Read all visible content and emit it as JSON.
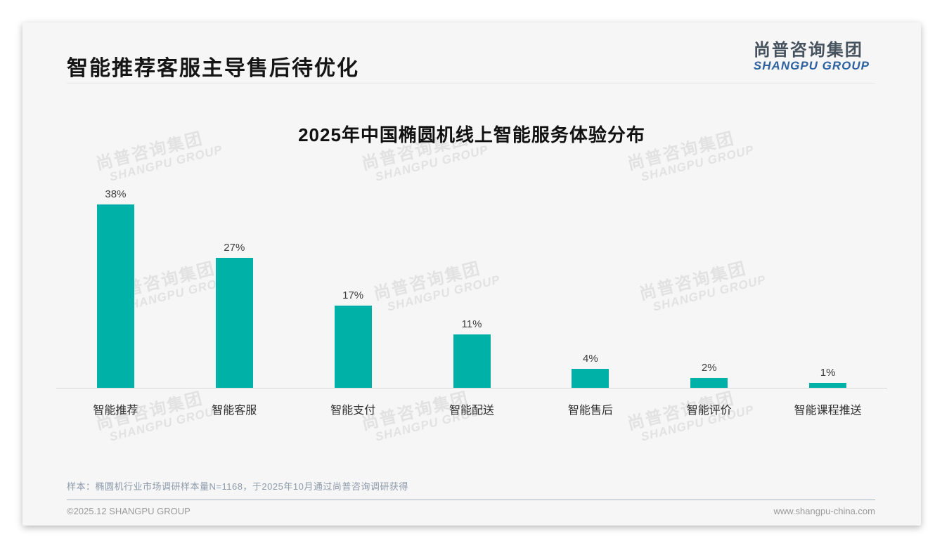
{
  "page": {
    "title": "智能推荐客服主导售后待优化",
    "logo": {
      "cn": "尚普咨询集团",
      "en": "SHANGPU GROUP"
    },
    "watermark": {
      "cn": "尚普咨询集团",
      "en": "SHANGPU GROUP"
    },
    "footnote": "样本：椭圆机行业市场调研样本量N=1168，于2025年10月通过尚普咨询调研获得",
    "footer": {
      "left": "©2025.12 SHANGPU GROUP",
      "right": "www.shangpu-china.com"
    }
  },
  "colors": {
    "bar": "#00b1a8",
    "card_background": "#f6f6f6",
    "logo_cn": "#46525e",
    "logo_en": "#2e619f",
    "footnote_text": "#8d9aaa",
    "footer_text": "#9a9a9a",
    "axis_line": "#d8d8d8"
  },
  "chart_data": {
    "type": "bar",
    "title": "2025年中国椭圆机线上智能服务体验分布",
    "categories": [
      "智能推荐",
      "智能客服",
      "智能支付",
      "智能配送",
      "智能售后",
      "智能评价",
      "智能课程推送"
    ],
    "values": [
      38,
      27,
      17,
      11,
      4,
      2,
      1
    ],
    "unit": "%",
    "value_labels": true,
    "xlabel": "",
    "ylabel": "",
    "ylim": [
      0,
      40
    ],
    "grid": false,
    "legend": false
  }
}
